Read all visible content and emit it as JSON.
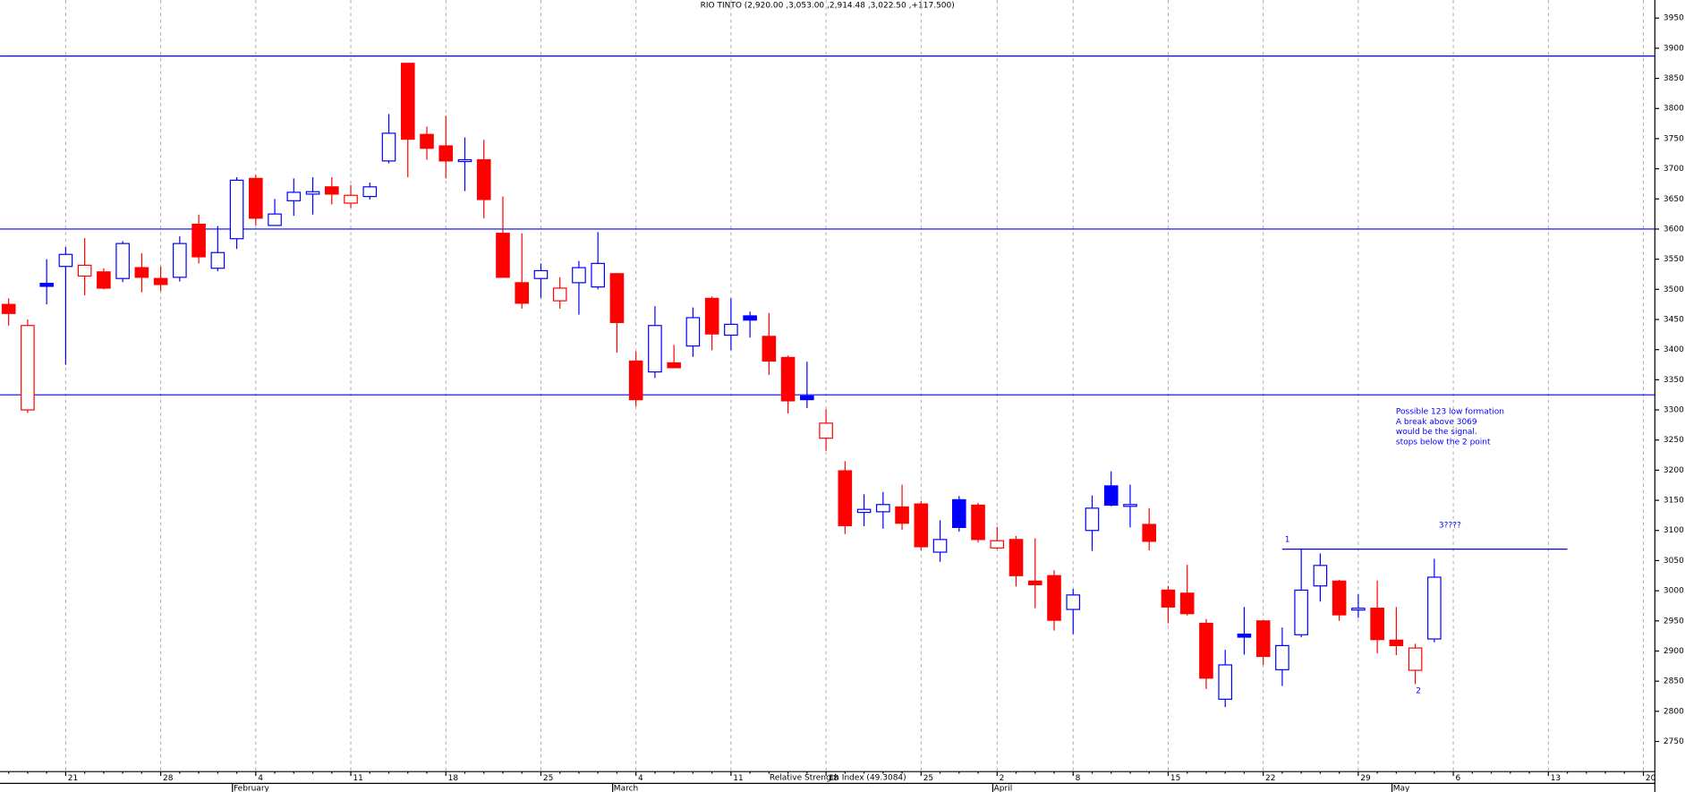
{
  "chart_data": {
    "type": "candlestick",
    "title": "RIO TINTO (2,920.00 ,3,053.00 ,2,914.48 ,3,022.50 ,+117.500)",
    "categories": [
      null,
      null,
      null,
      "21",
      null,
      null,
      null,
      null,
      "28",
      null,
      null,
      null,
      null,
      "4",
      null,
      null,
      null,
      null,
      "11",
      null,
      null,
      null,
      null,
      "18",
      null,
      null,
      null,
      null,
      "25",
      null,
      null,
      null,
      null,
      "4",
      null,
      null,
      null,
      null,
      "11",
      null,
      null,
      null,
      null,
      "18",
      null,
      null,
      null,
      null,
      "25",
      null,
      null,
      null,
      "2",
      null,
      null,
      null,
      "8",
      null,
      null,
      null,
      null,
      "15",
      null,
      null,
      null,
      null,
      "22",
      null,
      null,
      null,
      null,
      "29",
      null,
      null,
      null,
      null,
      "6",
      null,
      null,
      null,
      null,
      "13",
      null,
      null,
      null,
      null,
      "20"
    ],
    "months": [
      null,
      null,
      null,
      null,
      null,
      null,
      null,
      null,
      null,
      null,
      null,
      null,
      "February",
      null,
      null,
      null,
      null,
      null,
      null,
      null,
      null,
      null,
      null,
      null,
      null,
      null,
      null,
      null,
      null,
      null,
      null,
      null,
      "March",
      null,
      null,
      null,
      null,
      null,
      null,
      null,
      null,
      null,
      null,
      null,
      null,
      null,
      null,
      null,
      null,
      null,
      null,
      null,
      "April",
      null,
      null,
      null,
      null,
      null,
      null,
      null,
      null,
      null,
      null,
      null,
      null,
      null,
      null,
      null,
      null,
      null,
      null,
      null,
      null,
      "May",
      null,
      null,
      null,
      null,
      null,
      null,
      null,
      null,
      null,
      null,
      null,
      null,
      null
    ],
    "open": [
      3475,
      3300,
      3510,
      3538,
      3522,
      3529,
      3518,
      3536,
      3518,
      3520,
      3608,
      3535,
      3584,
      3684,
      3606,
      3647,
      3658,
      3670,
      3643,
      3654,
      3713,
      3875,
      3757,
      3738,
      3712,
      3715,
      3593,
      3511,
      3518,
      3481,
      3511,
      3504,
      3526,
      3381,
      3363,
      3378,
      3406,
      3485,
      3424,
      3456,
      3422,
      3387,
      3323,
      3253,
      3199,
      3130,
      3131,
      3139,
      3144,
      3064,
      3151,
      3142,
      3071,
      3085,
      3016,
      3025,
      2969,
      3100,
      3174,
      3140,
      3110,
      3001,
      2996,
      2946,
      2820,
      2928,
      2950,
      2869,
      2927,
      3008,
      3016,
      2968,
      2971,
      2918,
      2868,
      2920,
      null,
      null,
      null,
      null,
      null,
      null,
      null,
      null,
      null,
      null,
      null
    ],
    "high": [
      3485,
      3450,
      3550,
      3570,
      3585,
      3535,
      3580,
      3560,
      3538,
      3588,
      3624,
      3605,
      3686,
      3690,
      3650,
      3684,
      3686,
      3686,
      3673,
      3677,
      3791,
      3875,
      3770,
      3788,
      3752,
      3748,
      3654,
      3593,
      3543,
      3520,
      3547,
      3595,
      3527,
      3397,
      3472,
      3408,
      3470,
      3488,
      3485,
      3463,
      3461,
      3390,
      3380,
      3301,
      3215,
      3160,
      3164,
      3176,
      3149,
      3117,
      3157,
      3146,
      3106,
      3091,
      3087,
      3034,
      3003,
      3158,
      3198,
      3176,
      3137,
      3008,
      3043,
      2953,
      2902,
      2973,
      2951,
      2939,
      3069,
      3062,
      3018,
      2994,
      3017,
      2973,
      2912,
      3053,
      null,
      null,
      null,
      null,
      null,
      null,
      null,
      null,
      null,
      null,
      null
    ],
    "low": [
      3440,
      3295,
      3475,
      3375,
      3490,
      3500,
      3512,
      3495,
      3497,
      3513,
      3543,
      3530,
      3567,
      3606,
      3605,
      3622,
      3624,
      3641,
      3635,
      3649,
      3709,
      3686,
      3715,
      3684,
      3663,
      3618,
      3520,
      3468,
      3486,
      3468,
      3458,
      3500,
      3395,
      3306,
      3353,
      3369,
      3388,
      3399,
      3399,
      3420,
      3358,
      3294,
      3303,
      3232,
      3094,
      3107,
      3103,
      3101,
      3067,
      3048,
      3098,
      3080,
      3069,
      3007,
      2971,
      2934,
      2928,
      3066,
      3140,
      3105,
      3067,
      2946,
      2959,
      2837,
      2807,
      2894,
      2877,
      2842,
      2923,
      2982,
      2950,
      2955,
      2896,
      2893,
      2845,
      2914.48,
      null,
      null,
      null,
      null,
      null,
      null,
      null,
      null,
      null,
      null,
      null
    ],
    "close": [
      3460,
      3440,
      3505,
      3558,
      3540,
      3502,
      3576,
      3520,
      3508,
      3576,
      3554,
      3561,
      3681,
      3618,
      3625,
      3661,
      3662,
      3658,
      3656,
      3670,
      3759,
      3749,
      3734,
      3713,
      3715,
      3649,
      3520,
      3477,
      3531,
      3502,
      3536,
      3543,
      3445,
      3317,
      3440,
      3370,
      3453,
      3426,
      3442,
      3449,
      3381,
      3315,
      3317,
      3278,
      3108,
      3135,
      3143,
      3112,
      3073,
      3085,
      3105,
      3085,
      3083,
      3025,
      3010,
      2951,
      2993,
      3137,
      3142,
      3143,
      3082,
      2973,
      2962,
      2855,
      2877,
      2923,
      2891,
      2909,
      3001,
      3042,
      2960,
      2971,
      2919,
      2909,
      2905,
      3022.5,
      null,
      null,
      null,
      null,
      null,
      null,
      null,
      null,
      null,
      null,
      null
    ],
    "up_color": "#0000ff",
    "down_color": "#ff0000",
    "ylim": [
      2700,
      3980
    ],
    "yticks": [
      2750,
      2800,
      2850,
      2900,
      2950,
      3000,
      3050,
      3100,
      3150,
      3200,
      3250,
      3300,
      3350,
      3400,
      3450,
      3500,
      3550,
      3600,
      3650,
      3700,
      3750,
      3800,
      3850,
      3900,
      3950
    ],
    "grid": true,
    "hlines": [
      3887,
      3600,
      3325
    ],
    "hline_color": "#0000ff",
    "trendline": 3069,
    "annotations": {
      "point_1": "1",
      "point_2": "2",
      "target": "3????",
      "note": [
        "Possible 123 low formation",
        "A break above 3069",
        "would be the signal.",
        "stops below the 2 point"
      ]
    },
    "indicator_label": "Relative Strength Index (49.3084)"
  }
}
